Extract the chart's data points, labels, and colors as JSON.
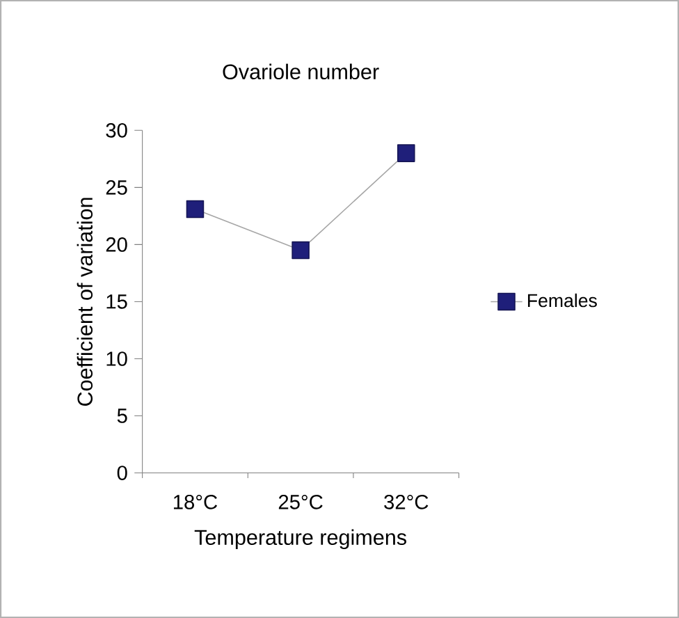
{
  "chart_data": {
    "type": "line",
    "title": "Ovariole number",
    "xlabel": "Temperature regimens",
    "ylabel": "Coefficient of variation",
    "categories": [
      "18°C",
      "25°C",
      "32°C"
    ],
    "series": [
      {
        "name": "Females",
        "color": "#1f1f7a",
        "values": [
          23.1,
          19.5,
          28.0
        ]
      }
    ],
    "ylim": [
      0,
      30
    ],
    "yticks": [
      0,
      5,
      10,
      15,
      20,
      25,
      30
    ],
    "grid": false,
    "legend": "right",
    "marker": "square",
    "line_style": "solid"
  }
}
